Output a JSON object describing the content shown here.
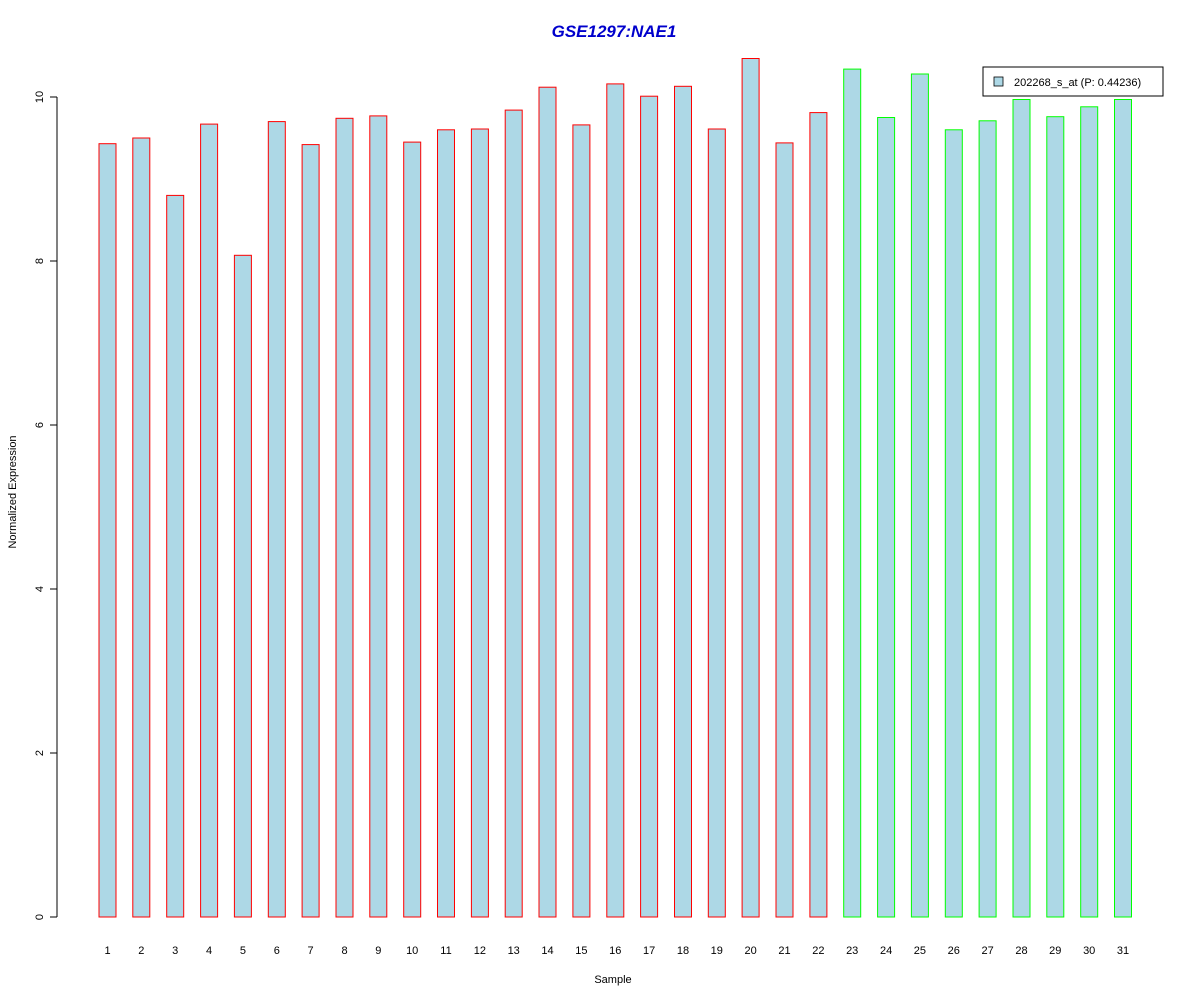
{
  "chart_data": {
    "type": "bar",
    "title": "GSE1297:NAE1",
    "xlabel": "Sample",
    "ylabel": "Normalized Expression",
    "ylim": [
      0,
      10.5
    ],
    "yticks": [
      0,
      2,
      4,
      6,
      8,
      10
    ],
    "categories": [
      "1",
      "2",
      "3",
      "4",
      "5",
      "6",
      "7",
      "8",
      "9",
      "10",
      "11",
      "12",
      "13",
      "14",
      "15",
      "16",
      "17",
      "18",
      "19",
      "20",
      "21",
      "22",
      "23",
      "24",
      "25",
      "26",
      "27",
      "28",
      "29",
      "30",
      "31"
    ],
    "values": [
      9.43,
      9.5,
      8.8,
      9.67,
      8.07,
      9.7,
      9.42,
      9.74,
      9.77,
      9.45,
      9.6,
      9.61,
      9.84,
      10.12,
      9.66,
      10.16,
      10.01,
      10.13,
      9.61,
      10.47,
      9.44,
      9.81,
      10.34,
      9.75,
      10.28,
      9.6,
      9.71,
      9.97,
      9.76,
      9.88,
      9.97
    ],
    "groups": [
      "red",
      "red",
      "red",
      "red",
      "red",
      "red",
      "red",
      "red",
      "red",
      "red",
      "red",
      "red",
      "red",
      "red",
      "red",
      "red",
      "red",
      "red",
      "red",
      "red",
      "red",
      "red",
      "green",
      "green",
      "green",
      "green",
      "green",
      "green",
      "green",
      "green",
      "green"
    ],
    "legend": [
      {
        "label": "202268_s_at (P: 0.44236)",
        "color": "#add8e6"
      }
    ],
    "legend_position": "top-right",
    "grid": false,
    "colors": {
      "title": "#0000cc",
      "bar_fill": "#add8e6",
      "red": "#ff0000",
      "green": "#00ff00",
      "axis": "#000000"
    }
  }
}
